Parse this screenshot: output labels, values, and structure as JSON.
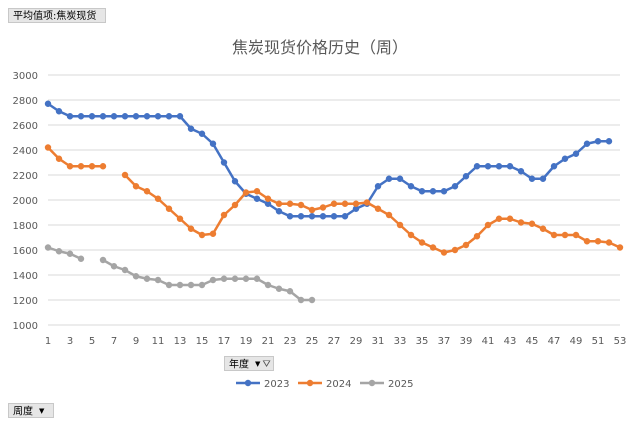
{
  "pivot": {
    "value_field": "平均值项:焦炭现货",
    "year_field": "年度",
    "week_field": "周度"
  },
  "icons": {
    "dropdown": "dropdown-arrow-icon",
    "filter": "filter-icon"
  },
  "chart_data": {
    "type": "line",
    "title": "焦炭现货价格历史（周）",
    "xlabel": "",
    "ylabel": "",
    "x_ticks": [
      1,
      3,
      5,
      7,
      9,
      11,
      13,
      15,
      17,
      19,
      21,
      23,
      25,
      27,
      29,
      31,
      33,
      35,
      37,
      39,
      41,
      43,
      45,
      47,
      49,
      51,
      53
    ],
    "xlim": [
      1,
      53
    ],
    "ylim": [
      1000,
      3000
    ],
    "y_ticks": [
      1000,
      1200,
      1400,
      1600,
      1800,
      2000,
      2200,
      2400,
      2600,
      2800,
      3000
    ],
    "grid": true,
    "legend_position": "bottom",
    "series": [
      {
        "name": "2023",
        "color": "#4472c4",
        "points": [
          [
            1,
            2770
          ],
          [
            2,
            2710
          ],
          [
            3,
            2670
          ],
          [
            4,
            2670
          ],
          [
            5,
            2670
          ],
          [
            6,
            2670
          ],
          [
            7,
            2670
          ],
          [
            8,
            2670
          ],
          [
            9,
            2670
          ],
          [
            10,
            2670
          ],
          [
            11,
            2670
          ],
          [
            12,
            2670
          ],
          [
            13,
            2670
          ],
          [
            14,
            2570
          ],
          [
            15,
            2530
          ],
          [
            16,
            2450
          ],
          [
            17,
            2300
          ],
          [
            18,
            2150
          ],
          [
            19,
            2050
          ],
          [
            20,
            2010
          ],
          [
            21,
            1970
          ],
          [
            22,
            1910
          ],
          [
            23,
            1870
          ],
          [
            24,
            1870
          ],
          [
            25,
            1870
          ],
          [
            26,
            1870
          ],
          [
            27,
            1870
          ],
          [
            28,
            1870
          ],
          [
            29,
            1930
          ],
          [
            30,
            1970
          ],
          [
            31,
            2110
          ],
          [
            32,
            2170
          ],
          [
            33,
            2170
          ],
          [
            34,
            2110
          ],
          [
            35,
            2070
          ],
          [
            36,
            2070
          ],
          [
            37,
            2070
          ],
          [
            38,
            2110
          ],
          [
            39,
            2190
          ],
          [
            40,
            2270
          ],
          [
            41,
            2270
          ],
          [
            42,
            2270
          ],
          [
            43,
            2270
          ],
          [
            44,
            2230
          ],
          [
            45,
            2170
          ],
          [
            46,
            2170
          ],
          [
            47,
            2270
          ],
          [
            48,
            2330
          ],
          [
            49,
            2370
          ],
          [
            50,
            2450
          ],
          [
            51,
            2470
          ],
          [
            52,
            2470
          ]
        ]
      },
      {
        "name": "2024",
        "color": "#ed7d31",
        "points": [
          [
            1,
            2420
          ],
          [
            2,
            2330
          ],
          [
            3,
            2270
          ],
          [
            4,
            2270
          ],
          [
            5,
            2270
          ],
          [
            6,
            2270
          ],
          [
            8,
            2200
          ],
          [
            9,
            2110
          ],
          [
            10,
            2070
          ],
          [
            11,
            2010
          ],
          [
            12,
            1930
          ],
          [
            13,
            1850
          ],
          [
            14,
            1770
          ],
          [
            15,
            1720
          ],
          [
            16,
            1730
          ],
          [
            17,
            1880
          ],
          [
            18,
            1960
          ],
          [
            19,
            2060
          ],
          [
            20,
            2070
          ],
          [
            21,
            2010
          ],
          [
            22,
            1970
          ],
          [
            23,
            1970
          ],
          [
            24,
            1960
          ],
          [
            25,
            1920
          ],
          [
            26,
            1940
          ],
          [
            27,
            1970
          ],
          [
            28,
            1970
          ],
          [
            29,
            1970
          ],
          [
            30,
            1980
          ],
          [
            31,
            1930
          ],
          [
            32,
            1880
          ],
          [
            33,
            1800
          ],
          [
            34,
            1720
          ],
          [
            35,
            1660
          ],
          [
            36,
            1620
          ],
          [
            37,
            1580
          ],
          [
            38,
            1600
          ],
          [
            39,
            1640
          ],
          [
            40,
            1710
          ],
          [
            41,
            1800
          ],
          [
            42,
            1850
          ],
          [
            43,
            1850
          ],
          [
            44,
            1820
          ],
          [
            45,
            1810
          ],
          [
            46,
            1770
          ],
          [
            47,
            1720
          ],
          [
            48,
            1720
          ],
          [
            49,
            1720
          ],
          [
            50,
            1670
          ],
          [
            51,
            1670
          ],
          [
            52,
            1660
          ],
          [
            53,
            1620
          ]
        ]
      },
      {
        "name": "2025",
        "color": "#a5a5a5",
        "points": [
          [
            1,
            1620
          ],
          [
            2,
            1590
          ],
          [
            3,
            1570
          ],
          [
            4,
            1530
          ],
          [
            6,
            1520
          ],
          [
            7,
            1470
          ],
          [
            8,
            1440
          ],
          [
            9,
            1390
          ],
          [
            10,
            1370
          ],
          [
            11,
            1360
          ],
          [
            12,
            1320
          ],
          [
            13,
            1320
          ],
          [
            14,
            1320
          ],
          [
            15,
            1320
          ],
          [
            16,
            1360
          ],
          [
            17,
            1370
          ],
          [
            18,
            1370
          ],
          [
            19,
            1370
          ],
          [
            20,
            1370
          ],
          [
            21,
            1320
          ],
          [
            22,
            1290
          ],
          [
            23,
            1270
          ],
          [
            24,
            1200
          ],
          [
            25,
            1200
          ]
        ]
      }
    ]
  }
}
